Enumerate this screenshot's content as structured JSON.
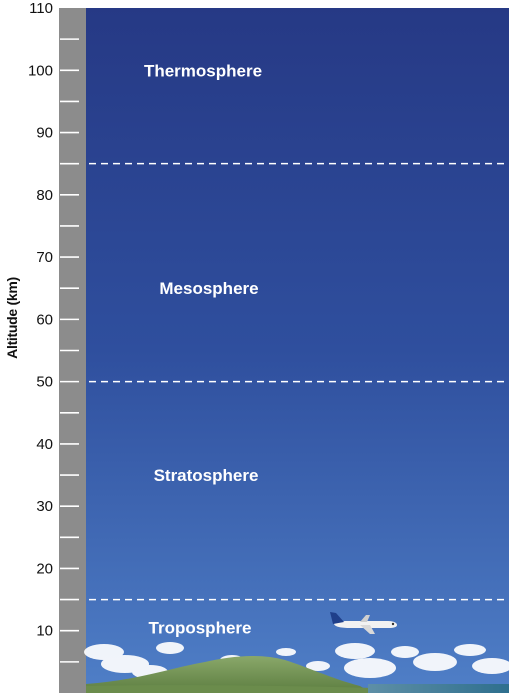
{
  "axis": {
    "title": "Altitude (km)",
    "min": 0,
    "max": 110,
    "major_ticks": [
      10,
      20,
      30,
      40,
      50,
      60,
      70,
      80,
      90,
      100,
      110
    ],
    "minor_step": 5
  },
  "layers": [
    {
      "name": "Troposphere",
      "label_alt": 10.5
    },
    {
      "name": "Stratosphere",
      "label_alt": 35
    },
    {
      "name": "Mesosphere",
      "label_alt": 65
    },
    {
      "name": "Thermosphere",
      "label_alt": 100
    }
  ],
  "boundaries": [
    15,
    50,
    85
  ],
  "colors": {
    "sky_top": "#263985",
    "sky_mid": "#2f4f9e",
    "sky_bottom": "#4f7fc7",
    "axis_bar": "#8c8c8c",
    "dashed_line": "#ffffff",
    "label_text": "#ffffff"
  },
  "decorations": [
    "airplane-icon",
    "clouds",
    "hill",
    "sea"
  ]
}
